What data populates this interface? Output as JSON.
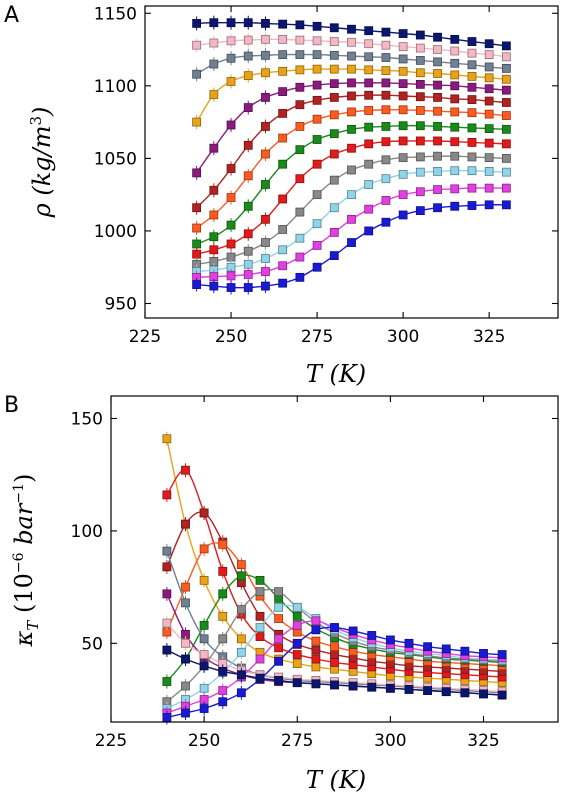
{
  "panels": {
    "a": {
      "letter": "A"
    },
    "b": {
      "letter": "B"
    }
  },
  "chart_data": [
    {
      "panel": "A",
      "type": "line",
      "xlabel": "T (K)",
      "ylabel": "ρ (kg/m³)",
      "xlim": [
        225,
        345
      ],
      "ylim": [
        940,
        1155
      ],
      "xticks": [
        225,
        250,
        275,
        300,
        325
      ],
      "yticks": [
        950,
        1000,
        1050,
        1100,
        1150
      ],
      "x": [
        240,
        245,
        250,
        255,
        260,
        265,
        270,
        275,
        280,
        285,
        290,
        295,
        300,
        305,
        310,
        315,
        320,
        325,
        330
      ],
      "series": [
        {
          "color": "#0a1670",
          "values": [
            1143,
            1143.5,
            1143.5,
            1143.5,
            1143,
            1142.5,
            1142,
            1141,
            1140,
            1139,
            1138,
            1137,
            1136,
            1135,
            1133.5,
            1132,
            1130.5,
            1129,
            1127.5
          ]
        },
        {
          "color": "#f4b8c4",
          "values": [
            1128,
            1129.5,
            1131,
            1131.5,
            1132,
            1132,
            1131.5,
            1131,
            1130.5,
            1130,
            1129,
            1128,
            1127,
            1126,
            1125,
            1124,
            1122.5,
            1121.5,
            1120
          ]
        },
        {
          "color": "#708090",
          "values": [
            1108,
            1115,
            1119,
            1120.5,
            1121,
            1121.5,
            1121.5,
            1121.5,
            1121,
            1120.5,
            1120,
            1119.5,
            1118.5,
            1117.5,
            1116.5,
            1115.5,
            1114.5,
            1113,
            1112
          ]
        },
        {
          "color": "#e8a317",
          "values": [
            1075,
            1094,
            1103,
            1107,
            1109,
            1110,
            1111,
            1111.5,
            1111.5,
            1111.5,
            1111,
            1110.5,
            1110,
            1109,
            1108.5,
            1107.5,
            1106.5,
            1105.5,
            1104.5
          ]
        },
        {
          "color": "#8b1a7e",
          "values": [
            1040,
            1057,
            1073,
            1085,
            1092,
            1096,
            1099,
            1100.5,
            1101.5,
            1102,
            1102,
            1102,
            1101.5,
            1101,
            1100.5,
            1100,
            1099,
            1098,
            1097
          ]
        },
        {
          "color": "#b22222",
          "values": [
            1016,
            1028,
            1043,
            1059,
            1072,
            1081,
            1087,
            1090,
            1092,
            1093,
            1093.5,
            1093.5,
            1093,
            1092.5,
            1092,
            1091,
            1090.5,
            1089.5,
            1088.5
          ]
        },
        {
          "color": "#ff5a1f",
          "values": [
            1002,
            1011,
            1023,
            1038,
            1053,
            1064,
            1072,
            1077,
            1080,
            1082,
            1083,
            1083.5,
            1083.5,
            1083,
            1082.5,
            1082,
            1081.5,
            1080.5,
            1079.5
          ]
        },
        {
          "color": "#1a8a1a",
          "values": [
            991,
            996,
            1004,
            1017,
            1032,
            1046,
            1056,
            1063,
            1067,
            1070,
            1071.5,
            1072,
            1072.5,
            1072.5,
            1072,
            1071.5,
            1071,
            1070.5,
            1070
          ]
        },
        {
          "color": "#e31a1c",
          "values": [
            984,
            987,
            991,
            998,
            1008,
            1022,
            1036,
            1046,
            1053,
            1057,
            1060,
            1061.5,
            1062,
            1062,
            1062,
            1061.5,
            1061,
            1060.5,
            1060
          ]
        },
        {
          "color": "#888888",
          "values": [
            977,
            979,
            982,
            986,
            992,
            1001,
            1013,
            1025,
            1035,
            1042,
            1046,
            1049,
            1050.5,
            1051,
            1051.5,
            1051.5,
            1051,
            1050.5,
            1050
          ]
        },
        {
          "color": "#8fd4e8",
          "values": [
            972,
            973,
            975,
            977,
            981,
            987,
            995,
            1005,
            1016,
            1025,
            1032,
            1036,
            1039,
            1040.5,
            1041,
            1041.5,
            1041.5,
            1041,
            1040.5
          ]
        },
        {
          "color": "#e040e0",
          "values": [
            968,
            968.5,
            969,
            970,
            972,
            976,
            982,
            990,
            999,
            1008,
            1015,
            1021,
            1025,
            1027,
            1028.5,
            1029,
            1029.5,
            1029.5,
            1029.5
          ]
        },
        {
          "color": "#1a1ad6",
          "values": [
            963,
            962,
            961,
            961,
            962,
            964,
            968,
            975,
            983,
            992,
            1000,
            1006,
            1011,
            1014,
            1016,
            1017,
            1017.5,
            1018,
            1018
          ]
        }
      ]
    },
    {
      "panel": "B",
      "type": "line",
      "xlabel": "T (K)",
      "ylabel": "κT (10⁻⁶ bar⁻¹)",
      "xlim": [
        225,
        345
      ],
      "ylim": [
        15,
        160
      ],
      "xticks": [
        225,
        250,
        275,
        300,
        325
      ],
      "yticks": [
        50,
        100,
        150
      ],
      "x": [
        240,
        245,
        250,
        255,
        260,
        265,
        270,
        275,
        280,
        285,
        290,
        295,
        300,
        305,
        310,
        315,
        320,
        325,
        330
      ],
      "series": [
        {
          "color": "#e8a317",
          "values": [
            141,
            103,
            78,
            62,
            52,
            46,
            43,
            41,
            39.5,
            38.5,
            37.5,
            36.5,
            35.5,
            35,
            34.5,
            34,
            33.5,
            33,
            32.5
          ]
        },
        {
          "color": "#e31a1c",
          "values": [
            116,
            127,
            108,
            82,
            63,
            53,
            48,
            45,
            43,
            41.5,
            40.5,
            39.5,
            38.5,
            37.5,
            37,
            36.5,
            36,
            35.5,
            35
          ]
        },
        {
          "color": "#b22222",
          "values": [
            84,
            103,
            108,
            95,
            77,
            62,
            54,
            49.5,
            47,
            45,
            43.5,
            42,
            41,
            40,
            39.5,
            39,
            38.5,
            38,
            37.5
          ]
        },
        {
          "color": "#ff5a1f",
          "values": [
            55,
            75,
            92,
            94,
            85,
            71,
            61,
            55,
            51,
            48.5,
            46.5,
            45,
            44,
            43,
            42,
            41.5,
            41,
            40.5,
            40
          ]
        },
        {
          "color": "#1a8a1a",
          "values": [
            33,
            43,
            58,
            72,
            80,
            78,
            70,
            62,
            56.5,
            52.5,
            49.5,
            47.5,
            46,
            45,
            44,
            43,
            42.5,
            42,
            41.5
          ]
        },
        {
          "color": "#8b1a7e",
          "values": [
            72,
            54,
            44,
            39,
            36,
            34,
            33,
            32.5,
            32,
            31.5,
            31,
            30.5,
            30,
            29.5,
            29,
            28.5,
            28,
            27.5,
            27
          ]
        },
        {
          "color": "#708090",
          "values": [
            91,
            68,
            52,
            44,
            39,
            36,
            34.5,
            33.5,
            33,
            32.5,
            32,
            31.5,
            31,
            30.5,
            30,
            29.5,
            29,
            28.5,
            28
          ]
        },
        {
          "color": "#f4b8c4",
          "values": [
            59,
            50,
            45,
            41,
            38,
            36,
            35,
            34,
            33.5,
            33,
            32.5,
            32,
            31.5,
            31,
            30.5,
            30,
            29.5,
            29,
            28.5
          ]
        },
        {
          "color": "#888888",
          "values": [
            24,
            31,
            40,
            52,
            65,
            73,
            73,
            66,
            59.5,
            54.5,
            51,
            48.5,
            47,
            45.5,
            44.5,
            43.5,
            43,
            42.5,
            42
          ]
        },
        {
          "color": "#8fd4e8",
          "values": [
            21,
            25,
            30,
            37,
            46,
            57,
            66,
            66,
            61,
            56,
            52.5,
            50,
            48,
            46.5,
            45.5,
            44.5,
            43.5,
            43,
            42.5
          ]
        },
        {
          "color": "#e040e0",
          "values": [
            19,
            22,
            25,
            29,
            35,
            43,
            52,
            58,
            60,
            57,
            54,
            51.5,
            49.5,
            48,
            46.5,
            45.5,
            44.5,
            44,
            43.5
          ]
        },
        {
          "color": "#1a1ad6",
          "values": [
            17,
            19,
            21,
            24,
            28,
            34,
            42,
            50,
            56,
            57,
            55.5,
            53.5,
            51.5,
            50,
            48.5,
            47.5,
            46.5,
            45.5,
            45
          ]
        },
        {
          "color": "#0a1670",
          "values": [
            47,
            43,
            40,
            37.5,
            36,
            34.5,
            33.5,
            32.5,
            32,
            31.5,
            31,
            30.5,
            30,
            29.5,
            29,
            28.5,
            28,
            27.5,
            27
          ]
        }
      ]
    }
  ]
}
